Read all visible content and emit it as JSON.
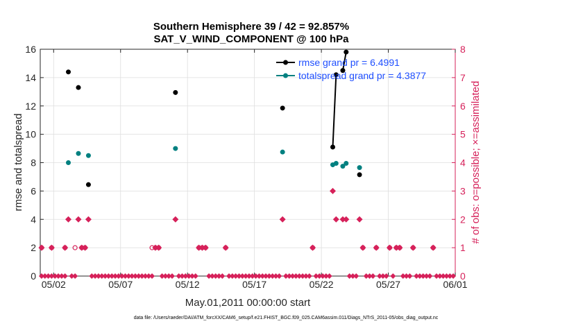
{
  "chart_data": {
    "type": "scatter",
    "title_line1": "Southern Hemisphere 39 / 42 = 92.857%",
    "title_line2": "SAT_V_WIND_COMPONENT @ 100 hPa",
    "xlabel": "May.01,2011 00:00:00 start",
    "ylabel_left": "rmse and totalspread",
    "ylabel_right": "# of obs: o=possible; ×=assimilated",
    "xlim": [
      0.4,
      31.4
    ],
    "ylim_left": [
      0,
      16
    ],
    "ylim_right": [
      0,
      8
    ],
    "x_ticks": [
      1.4,
      6.4,
      11.4,
      16.4,
      21.4,
      26.4,
      31.4
    ],
    "x_tick_labels": [
      "05/02",
      "05/07",
      "05/12",
      "05/17",
      "05/22",
      "05/27",
      "06/01"
    ],
    "y_ticks_left": [
      0,
      2,
      4,
      6,
      8,
      10,
      12,
      14,
      16
    ],
    "y_tick_labels_left": [
      "0",
      "2",
      "4",
      "6",
      "8",
      "10",
      "12",
      "14",
      "16"
    ],
    "y_ticks_right": [
      0,
      1,
      2,
      3,
      4,
      5,
      6,
      7,
      8
    ],
    "y_tick_labels_right": [
      "0",
      "1",
      "2",
      "3",
      "4",
      "5",
      "6",
      "7",
      "8"
    ],
    "grid": true,
    "colors": {
      "rmse": "#000000",
      "spread": "#008080",
      "obs": "#d6215a",
      "legend_text": "#1f4fff",
      "grid": "#dedede",
      "axis": "#262626"
    },
    "legend": [
      {
        "label": "rmse grand pr = 6.4991",
        "series": "rmse"
      },
      {
        "label": "totalspread grand pr = 4.3877",
        "series": "spread"
      }
    ],
    "series": [
      {
        "name": "rmse",
        "axis": "left",
        "x": [
          2.5,
          3.25,
          4.0,
          10.5,
          18.5,
          22.25,
          22.5,
          23.0,
          23.25,
          24.25
        ],
        "y": [
          14.4,
          13.3,
          6.45,
          12.95,
          11.85,
          9.1,
          14.2,
          14.5,
          15.8,
          7.15
        ],
        "line_segments": [
          [
            5,
            6
          ],
          [
            7,
            8
          ]
        ]
      },
      {
        "name": "totalspread",
        "axis": "right_scaled_left",
        "x": [
          2.5,
          3.25,
          4.0,
          10.5,
          18.5,
          22.25,
          22.5,
          23.0,
          23.25,
          24.25
        ],
        "y": [
          8.0,
          8.65,
          8.5,
          9.0,
          8.75,
          7.85,
          7.95,
          7.75,
          7.95,
          7.65
        ]
      },
      {
        "name": "possible",
        "axis": "right",
        "x": [
          0.5,
          1.25,
          2.25,
          3.0,
          3.5,
          3.75,
          8.75,
          9.0,
          9.25,
          12.25,
          12.5,
          12.75,
          14.25,
          20.75,
          24.5,
          25.5,
          26.5,
          27.0,
          27.25,
          28.25,
          29.75
        ],
        "y": [
          1,
          1,
          1,
          1,
          1,
          1,
          1,
          1,
          1,
          1,
          1,
          1,
          1,
          1,
          1,
          1,
          1,
          1,
          1,
          1,
          1
        ]
      },
      {
        "name": "assimilated",
        "axis": "right",
        "x": [
          0.5,
          1.25,
          2.25,
          2.5,
          3.25,
          3.5,
          3.75,
          4.0,
          9.0,
          9.25,
          10.5,
          12.25,
          12.5,
          12.75,
          14.25,
          18.5,
          20.75,
          22.25,
          22.5,
          23.0,
          23.25,
          24.25,
          24.5,
          25.5,
          26.5,
          27.0,
          27.25,
          28.25,
          29.75
        ],
        "y": [
          1,
          1,
          1,
          2,
          2,
          1,
          1,
          2,
          1,
          1,
          2,
          1,
          1,
          1,
          1,
          2,
          1,
          3,
          2,
          2,
          2,
          2,
          1,
          1,
          1,
          1,
          1,
          1,
          1
        ]
      },
      {
        "name": "zero_obs",
        "axis": "right",
        "x": [
          0.5,
          0.75,
          1.0,
          1.25,
          1.5,
          1.75,
          2.0,
          2.25,
          2.75,
          3.0,
          4.25,
          4.5,
          4.75,
          5.0,
          5.25,
          5.5,
          5.75,
          6.0,
          6.25,
          6.5,
          6.75,
          7.0,
          7.25,
          7.5,
          7.75,
          8.0,
          8.25,
          8.5,
          8.75,
          9.5,
          9.75,
          10.0,
          10.25,
          10.75,
          11.0,
          11.25,
          11.5,
          11.75,
          12.0,
          13.0,
          13.25,
          13.5,
          13.75,
          14.0,
          14.5,
          14.75,
          15.0,
          15.25,
          15.5,
          15.75,
          16.0,
          16.25,
          16.5,
          16.75,
          17.0,
          17.25,
          17.5,
          17.75,
          18.0,
          18.25,
          18.75,
          19.0,
          19.25,
          19.5,
          19.75,
          20.0,
          20.25,
          20.5,
          21.0,
          21.25,
          21.5,
          21.75,
          22.0,
          23.5,
          23.75,
          24.0,
          24.75,
          25.0,
          25.25,
          25.75,
          26.0,
          26.25,
          26.75,
          27.5,
          27.75,
          28.0,
          28.5,
          28.75,
          29.0,
          29.25,
          29.5,
          30.0,
          30.25,
          30.5,
          30.75,
          31.0,
          31.25
        ],
        "y": 0
      }
    ]
  },
  "footer": {
    "data_file": "data file: /Users/raeder/DAI/ATM_forcXX/CAM6_setup/f.e21.FHIST_BGC.f09_025.CAM6assim.011/Diags_NTrS_2011-05/obs_diag_output.nc"
  }
}
